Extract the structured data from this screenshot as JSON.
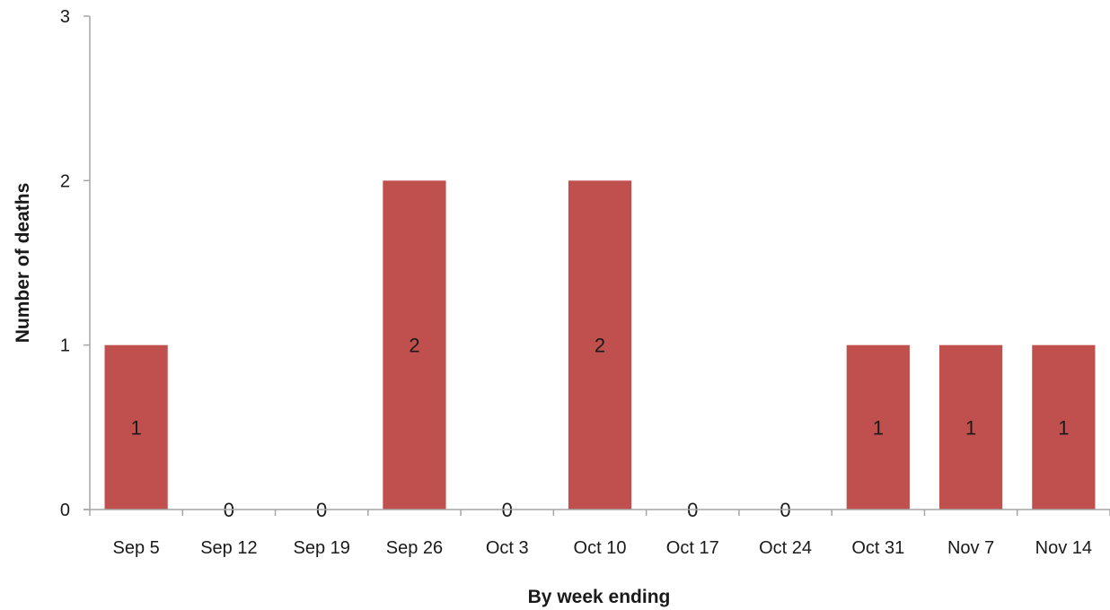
{
  "chart_data": {
    "type": "bar",
    "categories": [
      "Sep 5",
      "Sep 12",
      "Sep 19",
      "Sep 26",
      "Oct 3",
      "Oct 10",
      "Oct 17",
      "Oct 24",
      "Oct 31",
      "Nov 7",
      "Nov 14"
    ],
    "values": [
      1,
      0,
      0,
      2,
      0,
      2,
      0,
      0,
      1,
      1,
      1
    ],
    "data_labels": [
      "1",
      "0",
      "0",
      "2",
      "0",
      "2",
      "0",
      "0",
      "1",
      "1",
      "1"
    ],
    "title": "",
    "xlabel": "By week ending",
    "ylabel": "Number of deaths",
    "ylim": [
      0,
      3
    ],
    "yticks": [
      "0",
      "1",
      "2",
      "3"
    ],
    "grid": false,
    "legend": "none",
    "bar_color": "#c0504d",
    "axis_color": "#a6a6a6"
  }
}
